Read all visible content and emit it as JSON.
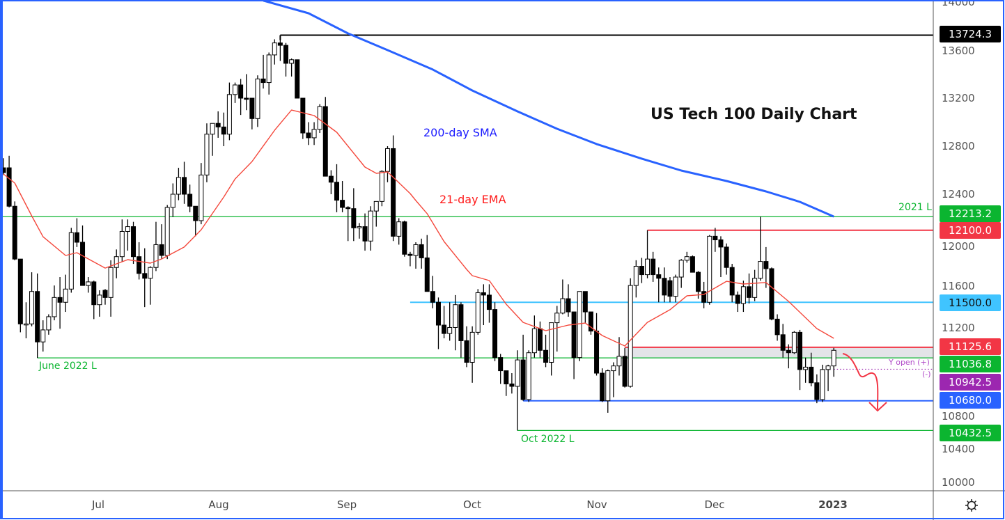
{
  "chart_data": {
    "type": "candlestick",
    "title": "US Tech 100 Daily Chart",
    "ylim": [
      10000,
      14000
    ],
    "y_ticks": [
      14000,
      13600,
      13200,
      12800,
      12400,
      12000,
      11600,
      11200,
      10800,
      10400,
      10000
    ],
    "x_ticks": [
      {
        "label": "Jul",
        "index": 17
      },
      {
        "label": "Aug",
        "index": 38
      },
      {
        "label": "Sep",
        "index": 61
      },
      {
        "label": "Oct",
        "index": 83
      },
      {
        "label": "Nov",
        "index": 105
      },
      {
        "label": "Dec",
        "index": 126
      },
      {
        "label": "2023",
        "index": 147
      }
    ],
    "grid": false,
    "colors": {
      "bull_fill": "#ffffff",
      "bear_fill": "#000000",
      "sma": "#2962ff",
      "ema": "#f4483c"
    },
    "ohlc": [
      [
        12620,
        12700,
        12560,
        12580
      ],
      [
        12620,
        12720,
        12290,
        12300
      ],
      [
        12300,
        12340,
        11850,
        11860
      ],
      [
        11860,
        11860,
        11250,
        11320
      ],
      [
        11320,
        11500,
        11200,
        11320
      ],
      [
        11320,
        11750,
        11300,
        11590
      ],
      [
        11590,
        11740,
        11036.8,
        11170
      ],
      [
        11170,
        11350,
        11090,
        11270
      ],
      [
        11270,
        11400,
        11230,
        11380
      ],
      [
        11380,
        11640,
        11350,
        11540
      ],
      [
        11540,
        11710,
        11280,
        11500
      ],
      [
        11500,
        11730,
        11420,
        11610
      ],
      [
        11610,
        12120,
        11580,
        12080
      ],
      [
        12080,
        12200,
        11960,
        12000
      ],
      [
        12000,
        12140,
        11640,
        11640
      ],
      [
        11640,
        11710,
        11580,
        11670
      ],
      [
        11670,
        11680,
        11360,
        11480
      ],
      [
        11480,
        11600,
        11380,
        11560
      ],
      [
        11600,
        11610,
        11480,
        11540
      ],
      [
        11540,
        11850,
        11380,
        11790
      ],
      [
        11790,
        11940,
        11700,
        11880
      ],
      [
        11880,
        12190,
        11840,
        12090
      ],
      [
        12090,
        12190,
        11930,
        12130
      ],
      [
        12130,
        12170,
        11820,
        11880
      ],
      [
        11880,
        12000,
        11690,
        11740
      ],
      [
        11740,
        11950,
        11460,
        11700
      ],
      [
        11700,
        11800,
        11480,
        11790
      ],
      [
        11790,
        12170,
        11760,
        11980
      ],
      [
        11980,
        12150,
        11860,
        11890
      ],
      [
        11890,
        12310,
        11860,
        12290
      ],
      [
        12290,
        12490,
        12210,
        12400
      ],
      [
        12400,
        12620,
        12350,
        12540
      ],
      [
        12540,
        12670,
        12320,
        12400
      ],
      [
        12400,
        12480,
        12250,
        12300
      ],
      [
        12300,
        12300,
        12050,
        12180
      ],
      [
        12180,
        12660,
        12150,
        12560
      ],
      [
        12560,
        12990,
        12500,
        12900
      ],
      [
        12900,
        12990,
        12720,
        12990
      ],
      [
        12990,
        13090,
        12870,
        12960
      ],
      [
        12960,
        13080,
        12800,
        12900
      ],
      [
        12900,
        13330,
        12850,
        13230
      ],
      [
        13230,
        13330,
        13160,
        13310
      ],
      [
        13310,
        13360,
        13060,
        13200
      ],
      [
        13200,
        13400,
        13100,
        13190
      ],
      [
        13200,
        13200,
        12940,
        13030
      ],
      [
        13030,
        13390,
        12960,
        13360
      ],
      [
        13360,
        13560,
        13280,
        13330
      ],
      [
        13330,
        13580,
        13230,
        13560
      ],
      [
        13560,
        13690,
        13480,
        13660
      ],
      [
        13660,
        13724.3,
        13510,
        13640
      ],
      [
        13640,
        13660,
        13380,
        13490
      ],
      [
        13490,
        13530,
        13380,
        13520
      ],
      [
        13520,
        13520,
        13200,
        13200
      ],
      [
        13200,
        13200,
        12860,
        12910
      ],
      [
        12910,
        13000,
        12810,
        12870
      ],
      [
        12870,
        13000,
        12810,
        12940
      ],
      [
        12940,
        13150,
        12910,
        13130
      ],
      [
        13130,
        13210,
        12550,
        12550
      ],
      [
        12550,
        12600,
        12400,
        12500
      ],
      [
        12500,
        12650,
        12250,
        12350
      ],
      [
        12350,
        12510,
        12250,
        12290
      ],
      [
        12290,
        12300,
        12010,
        12280
      ],
      [
        12280,
        12450,
        12010,
        12120
      ],
      [
        12120,
        12160,
        12030,
        12130
      ],
      [
        12130,
        12240,
        11930,
        12010
      ],
      [
        12010,
        12300,
        11930,
        12260
      ],
      [
        12260,
        12340,
        12130,
        12340
      ],
      [
        12340,
        12600,
        12300,
        12590
      ],
      [
        12590,
        12800,
        12500,
        12780
      ],
      [
        12780,
        12890,
        12010,
        12050
      ],
      [
        12050,
        12200,
        11980,
        12170
      ],
      [
        12170,
        12180,
        11880,
        11900
      ],
      [
        11900,
        11920,
        11800,
        11890
      ],
      [
        11890,
        12000,
        11780,
        11980
      ],
      [
        11980,
        12030,
        11780,
        11870
      ],
      [
        11870,
        12060,
        11590,
        11590
      ],
      [
        11590,
        11720,
        11450,
        11500
      ],
      [
        11500,
        11540,
        11110,
        11310
      ],
      [
        11310,
        11470,
        11200,
        11240
      ],
      [
        11240,
        11500,
        11180,
        11290
      ],
      [
        11290,
        11560,
        11100,
        11480
      ],
      [
        11480,
        11500,
        11040,
        11180
      ],
      [
        11180,
        11300,
        10960,
        11000
      ],
      [
        11000,
        11300,
        10830,
        11250
      ],
      [
        11250,
        11610,
        11230,
        11580
      ],
      [
        11580,
        11650,
        11310,
        11560
      ],
      [
        11560,
        11650,
        11330,
        11440
      ],
      [
        11440,
        11500,
        11010,
        11040
      ],
      [
        11040,
        11070,
        10820,
        10930
      ],
      [
        10930,
        10930,
        10720,
        10820
      ],
      [
        10820,
        10910,
        10740,
        10800
      ],
      [
        10800,
        11100,
        10432.5,
        11020
      ],
      [
        11020,
        11230,
        10680,
        10690
      ],
      [
        10690,
        11100,
        10670,
        11080
      ],
      [
        11080,
        11390,
        11040,
        11280
      ],
      [
        11280,
        11340,
        11040,
        11100
      ],
      [
        11100,
        11230,
        10960,
        11000
      ],
      [
        11000,
        11330,
        10890,
        11330
      ],
      [
        11330,
        11470,
        11090,
        11410
      ],
      [
        11410,
        11690,
        11400,
        11530
      ],
      [
        11530,
        11650,
        11380,
        11420
      ],
      [
        11420,
        11420,
        10860,
        11040
      ],
      [
        11040,
        11590,
        11010,
        11590
      ],
      [
        11590,
        11590,
        11330,
        11420
      ],
      [
        11420,
        11420,
        11230,
        11260
      ],
      [
        11260,
        11410,
        10890,
        10910
      ],
      [
        10910,
        10950,
        10670,
        10680
      ],
      [
        10680,
        10940,
        10580,
        10930
      ],
      [
        10930,
        11000,
        10710,
        10970
      ],
      [
        10970,
        11210,
        10890,
        11050
      ],
      [
        11050,
        11120,
        10790,
        10800
      ],
      [
        10800,
        11700,
        10790,
        11640
      ],
      [
        11640,
        11850,
        11540,
        11800
      ],
      [
        11800,
        11870,
        11660,
        11730
      ],
      [
        11730,
        12100,
        11700,
        11860
      ],
      [
        11860,
        11920,
        11670,
        11730
      ],
      [
        11730,
        11790,
        11500,
        11700
      ],
      [
        11700,
        11790,
        11500,
        11560
      ],
      [
        11680,
        11710,
        11500,
        11550
      ],
      [
        11550,
        11730,
        11500,
        11710
      ],
      [
        11710,
        11860,
        11620,
        11850
      ],
      [
        11850,
        11920,
        11830,
        11880
      ],
      [
        11880,
        11890,
        11750,
        11750
      ],
      [
        11750,
        11760,
        11530,
        11590
      ],
      [
        11590,
        11670,
        11450,
        11500
      ],
      [
        11500,
        12060,
        11480,
        12050
      ],
      [
        12050,
        12120,
        11920,
        12020
      ],
      [
        12020,
        12050,
        11710,
        11960
      ],
      [
        11960,
        11990,
        11730,
        11790
      ],
      [
        11790,
        11820,
        11500,
        11560
      ],
      [
        11560,
        11590,
        11420,
        11490
      ],
      [
        11490,
        11680,
        11420,
        11630
      ],
      [
        11630,
        11740,
        11490,
        11540
      ],
      [
        11540,
        11770,
        11510,
        11700
      ],
      [
        11700,
        12213.2,
        11680,
        11840
      ],
      [
        11840,
        11960,
        11620,
        11780
      ],
      [
        11780,
        11790,
        11350,
        11360
      ],
      [
        11360,
        11400,
        11180,
        11230
      ],
      [
        11230,
        11320,
        11040,
        11100
      ],
      [
        11100,
        11150,
        10950,
        11080
      ],
      [
        11080,
        11260,
        11070,
        11250
      ],
      [
        11250,
        11270,
        10770,
        10940
      ],
      [
        10940,
        11040,
        10830,
        10960
      ],
      [
        10960,
        11080,
        10800,
        10830
      ],
      [
        10830,
        10900,
        10660,
        10690
      ],
      [
        10690,
        10980,
        10670,
        10940
      ],
      [
        10940,
        10980,
        10760,
        10970
      ],
      [
        10970,
        11120,
        10880,
        11100
      ]
    ],
    "sma_200": {
      "label": "200-day SMA",
      "points": [
        [
          46,
          14012
        ],
        [
          54,
          13907
        ],
        [
          61,
          13739
        ],
        [
          68,
          13600
        ],
        [
          76,
          13438
        ],
        [
          83,
          13264
        ],
        [
          91,
          13090
        ],
        [
          98,
          12945
        ],
        [
          105,
          12818
        ],
        [
          113,
          12696
        ],
        [
          120,
          12597
        ],
        [
          128,
          12510
        ],
        [
          135,
          12423
        ],
        [
          141,
          12336
        ],
        [
          147,
          12214
        ]
      ]
    },
    "ema_21": {
      "label": "21-day EMA",
      "points": [
        [
          0,
          12568
        ],
        [
          2,
          12493
        ],
        [
          5,
          12220
        ],
        [
          7,
          12046
        ],
        [
          11,
          11890
        ],
        [
          13,
          11913
        ],
        [
          18,
          11785
        ],
        [
          22,
          11855
        ],
        [
          26,
          11826
        ],
        [
          28,
          11861
        ],
        [
          32,
          11960
        ],
        [
          35,
          12104
        ],
        [
          39,
          12377
        ],
        [
          41,
          12527
        ],
        [
          44,
          12672
        ],
        [
          48,
          12933
        ],
        [
          51,
          13101
        ],
        [
          55,
          13055
        ],
        [
          59,
          12916
        ],
        [
          64,
          12626
        ],
        [
          66,
          12574
        ],
        [
          68,
          12586
        ],
        [
          72,
          12406
        ],
        [
          73,
          12348
        ],
        [
          75,
          12238
        ],
        [
          78,
          12006
        ],
        [
          82,
          11774
        ],
        [
          83,
          11722
        ],
        [
          86,
          11681
        ],
        [
          89,
          11484
        ],
        [
          92,
          11333
        ],
        [
          96,
          11264
        ],
        [
          100,
          11310
        ],
        [
          103,
          11327
        ],
        [
          106,
          11223
        ],
        [
          110,
          11136
        ],
        [
          114,
          11333
        ],
        [
          118,
          11438
        ],
        [
          121,
          11554
        ],
        [
          124,
          11565
        ],
        [
          128,
          11675
        ],
        [
          131,
          11652
        ],
        [
          135,
          11665
        ],
        [
          139,
          11507
        ],
        [
          144,
          11281
        ],
        [
          147,
          11200
        ]
      ]
    },
    "levels": [
      {
        "value": 13724.3,
        "label": "13724.3",
        "from_index": 49,
        "color": "#000000"
      },
      {
        "value": 12213.2,
        "label": "12213.2",
        "from_index": 0,
        "color": "#0bb530",
        "annotation": "2021 L"
      },
      {
        "value": 12100.0,
        "label": "12100.0",
        "from_index": 114,
        "color": "#f23645"
      },
      {
        "value": 11500.0,
        "label": "11500.0",
        "from_index": 72,
        "color": "#40c4ff"
      },
      {
        "value": 11125.6,
        "label": "11125.6",
        "from_index": 110,
        "color": "#f23645"
      },
      {
        "value": 11036.8,
        "label": "11036.8",
        "from_index": 6,
        "color": "#0bb530",
        "annotation": "June 2022 L"
      },
      {
        "value": 10942.5,
        "label": "10942.5",
        "from_index": 147,
        "color": "#9c27b0",
        "annotation": "Y open (+)",
        "annotation2": "(-)"
      },
      {
        "value": 10680.0,
        "label": "10680.0",
        "from_index": 92,
        "color": "#2962ff"
      },
      {
        "value": 10432.5,
        "label": "10432.5",
        "from_index": 91,
        "color": "#0bb530",
        "annotation": "Oct 2022 L"
      }
    ],
    "zone": {
      "from": 11036.8,
      "to": 11125.6,
      "from_index": 110,
      "color": "#e3e4e8"
    }
  },
  "toolbar": {
    "settings_icon": "gear-icon"
  }
}
